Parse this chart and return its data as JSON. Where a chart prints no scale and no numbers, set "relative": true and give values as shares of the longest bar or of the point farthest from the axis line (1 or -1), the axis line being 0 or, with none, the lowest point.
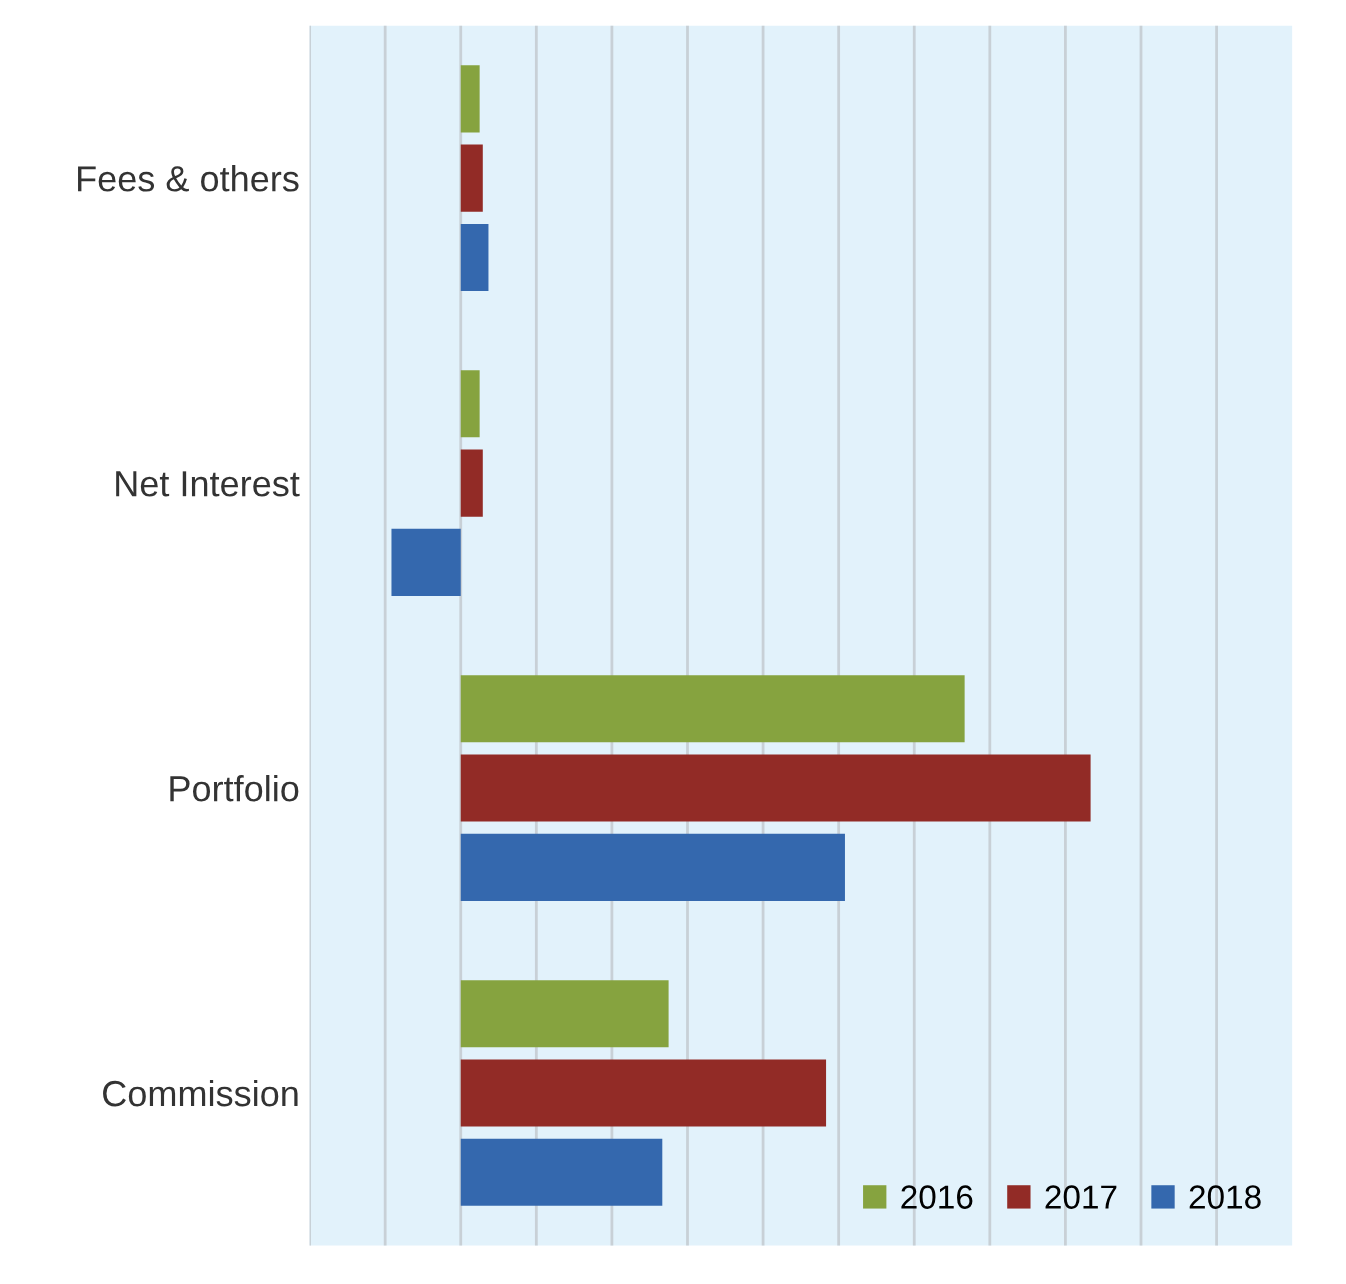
{
  "chart_data": {
    "type": "bar",
    "orientation": "horizontal",
    "relative": true,
    "categories": [
      "Fees & others",
      "Net Interest",
      "Portfolio",
      "Commission"
    ],
    "series": [
      {
        "name": "2016",
        "color": "#86a33f",
        "values": [
          0.03,
          0.03,
          0.8,
          0.33
        ]
      },
      {
        "name": "2017",
        "color": "#922b26",
        "values": [
          0.035,
          0.035,
          1,
          0.58
        ]
      },
      {
        "name": "2018",
        "color": "#3468ae",
        "values": [
          0.044,
          -0.11,
          0.61,
          0.32
        ]
      }
    ],
    "grid": "x",
    "legend": "bottom right"
  }
}
